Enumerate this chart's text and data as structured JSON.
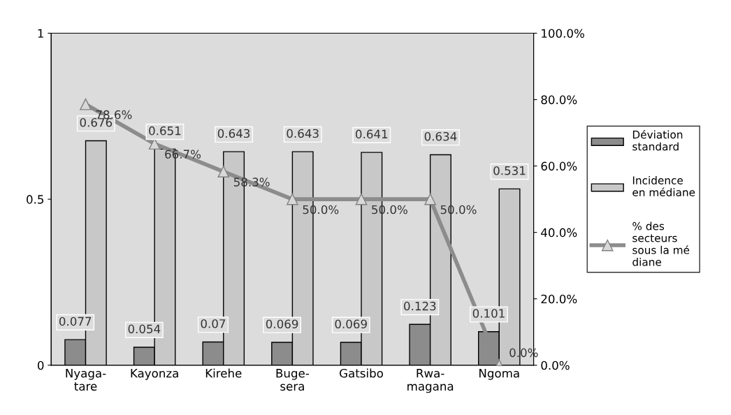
{
  "chart_data": {
    "type": "bar",
    "categories": [
      "Nyaga-\ntare",
      "Kayonza",
      "Kirehe",
      "Buge-\nsera",
      "Gatsibo",
      "Rwa-\nmagana",
      "Ngoma"
    ],
    "series": [
      {
        "name": "Déviation\nstandard",
        "color": "#8c8c8c",
        "values": [
          0.077,
          0.054,
          0.07,
          0.069,
          0.069,
          0.123,
          0.101
        ]
      },
      {
        "name": "Incidence\nen médiane",
        "color": "#c8c8c8",
        "values": [
          0.676,
          0.651,
          0.643,
          0.643,
          0.641,
          0.634,
          0.531
        ]
      },
      {
        "name": "% des\nsecteurs\nsous la mé\ndiane",
        "type": "line",
        "axis": "y2",
        "color": "#8c8c8c",
        "marker": "triangle",
        "values": [
          78.6,
          66.7,
          58.3,
          50.0,
          50.0,
          50.0,
          0.0
        ],
        "value_labels": [
          "78.6%",
          "66.7%",
          "58.3%",
          "50.0%",
          "50.0%",
          "50.0%",
          "0.0%"
        ]
      }
    ],
    "ylim": [
      0,
      1
    ],
    "yticks": [
      0,
      0.5,
      1
    ],
    "y2lim": [
      0,
      100
    ],
    "y2ticks": [
      {
        "value": 0,
        "label": "0.0%"
      },
      {
        "value": 20,
        "label": "20.0%"
      },
      {
        "value": 40,
        "label": "40.0%"
      },
      {
        "value": 60,
        "label": "60.0%"
      },
      {
        "value": 80,
        "label": "80.0%"
      },
      {
        "value": 100,
        "label": "100.0%"
      }
    ],
    "data_labels": true,
    "grid": false,
    "legend": "right"
  }
}
